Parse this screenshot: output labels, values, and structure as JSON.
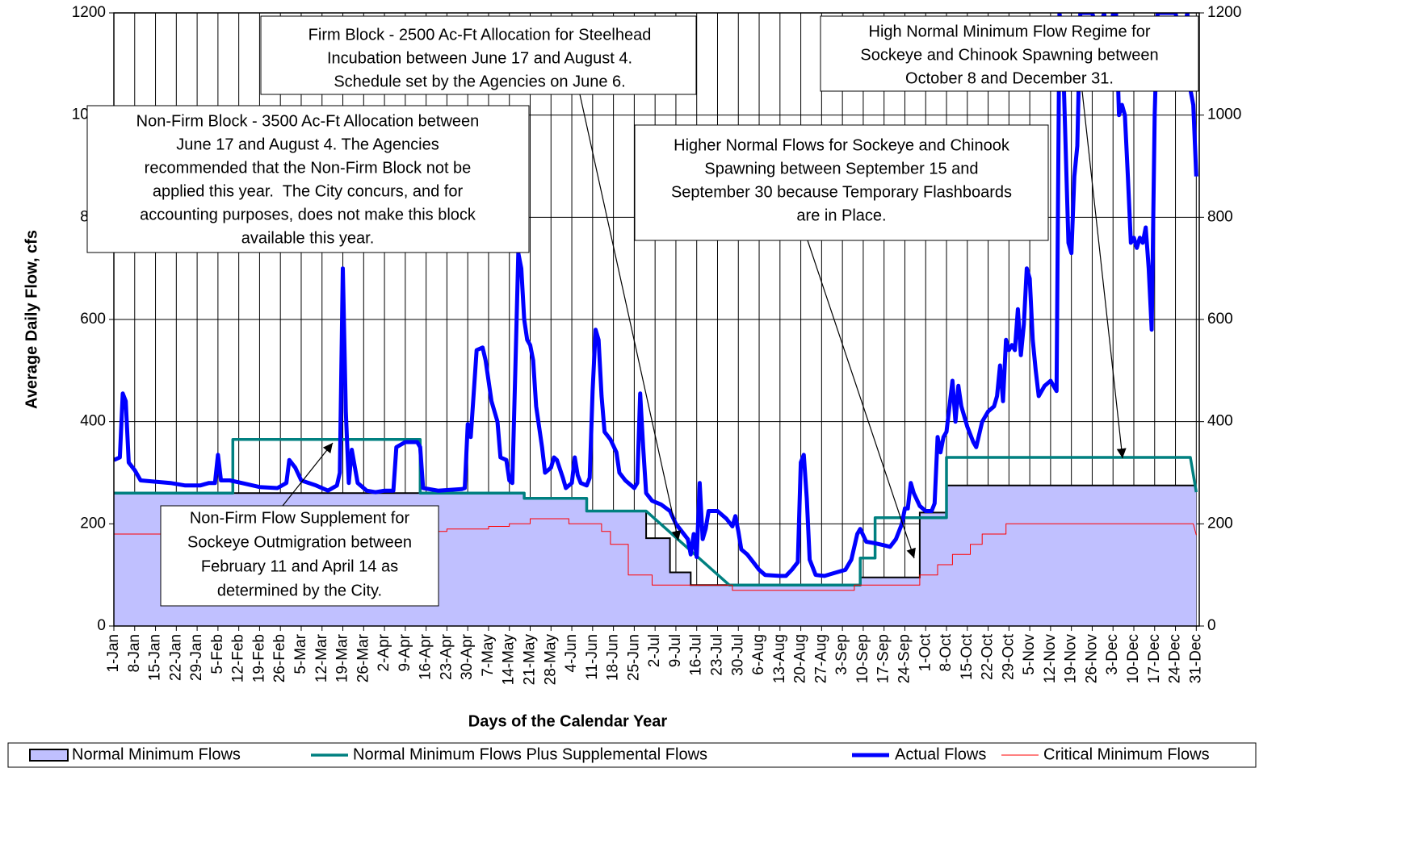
{
  "chart_data": {
    "type": "line",
    "y_label": "Average Daily Flow, cfs",
    "x_label": "Days of the Calendar Year",
    "xlim": [
      1,
      366
    ],
    "ylim": [
      0,
      1200
    ],
    "y2lim": [
      0,
      1200
    ],
    "yticks": [
      0,
      200,
      400,
      600,
      800,
      1000,
      1200
    ],
    "y2ticks": [
      0,
      200,
      400,
      600,
      800,
      1000,
      1200
    ],
    "grid": true,
    "legend": "bottom",
    "xticks": [
      {
        "value": 1,
        "label": "1-Jan"
      },
      {
        "value": 8,
        "label": "8-Jan"
      },
      {
        "value": 15,
        "label": "15-Jan"
      },
      {
        "value": 22,
        "label": "22-Jan"
      },
      {
        "value": 29,
        "label": "29-Jan"
      },
      {
        "value": 36,
        "label": "5-Feb"
      },
      {
        "value": 43,
        "label": "12-Feb"
      },
      {
        "value": 50,
        "label": "19-Feb"
      },
      {
        "value": 57,
        "label": "26-Feb"
      },
      {
        "value": 64,
        "label": "5-Mar"
      },
      {
        "value": 71,
        "label": "12-Mar"
      },
      {
        "value": 78,
        "label": "19-Mar"
      },
      {
        "value": 85,
        "label": "26-Mar"
      },
      {
        "value": 92,
        "label": "2-Apr"
      },
      {
        "value": 99,
        "label": "9-Apr"
      },
      {
        "value": 106,
        "label": "16-Apr"
      },
      {
        "value": 113,
        "label": "23-Apr"
      },
      {
        "value": 120,
        "label": "30-Apr"
      },
      {
        "value": 127,
        "label": "7-May"
      },
      {
        "value": 134,
        "label": "14-May"
      },
      {
        "value": 141,
        "label": "21-May"
      },
      {
        "value": 148,
        "label": "28-May"
      },
      {
        "value": 155,
        "label": "4-Jun"
      },
      {
        "value": 162,
        "label": "11-Jun"
      },
      {
        "value": 169,
        "label": "18-Jun"
      },
      {
        "value": 176,
        "label": "25-Jun"
      },
      {
        "value": 183,
        "label": "2-Jul"
      },
      {
        "value": 190,
        "label": "9-Jul"
      },
      {
        "value": 197,
        "label": "16-Jul"
      },
      {
        "value": 204,
        "label": "23-Jul"
      },
      {
        "value": 211,
        "label": "30-Jul"
      },
      {
        "value": 218,
        "label": "6-Aug"
      },
      {
        "value": 225,
        "label": "13-Aug"
      },
      {
        "value": 232,
        "label": "20-Aug"
      },
      {
        "value": 239,
        "label": "27-Aug"
      },
      {
        "value": 246,
        "label": "3-Sep"
      },
      {
        "value": 253,
        "label": "10-Sep"
      },
      {
        "value": 260,
        "label": "17-Sep"
      },
      {
        "value": 267,
        "label": "24-Sep"
      },
      {
        "value": 274,
        "label": "1-Oct"
      },
      {
        "value": 281,
        "label": "8-Oct"
      },
      {
        "value": 288,
        "label": "15-Oct"
      },
      {
        "value": 295,
        "label": "22-Oct"
      },
      {
        "value": 302,
        "label": "29-Oct"
      },
      {
        "value": 309,
        "label": "5-Nov"
      },
      {
        "value": 316,
        "label": "12-Nov"
      },
      {
        "value": 323,
        "label": "19-Nov"
      },
      {
        "value": 330,
        "label": "26-Nov"
      },
      {
        "value": 337,
        "label": "3-Dec"
      },
      {
        "value": 344,
        "label": "10-Dec"
      },
      {
        "value": 351,
        "label": "17-Dec"
      },
      {
        "value": 358,
        "label": "24-Dec"
      },
      {
        "value": 365,
        "label": "31-Dec"
      }
    ],
    "series": [
      {
        "name": "Normal Minimum Flows",
        "type": "area",
        "color": "#c0c0ff",
        "edge_color": "#000000",
        "x": [
          1,
          139,
          139,
          160,
          160,
          180,
          180,
          188,
          188,
          195,
          195,
          252,
          252,
          272,
          272,
          281,
          281,
          365
        ],
        "values": [
          260,
          260,
          250,
          250,
          225,
          225,
          172,
          172,
          105,
          105,
          80,
          80,
          95,
          95,
          222,
          222,
          275,
          275
        ]
      },
      {
        "name": "Normal Minimum Flows Plus Supplemental Flows",
        "type": "line",
        "color": "#008080",
        "width": 3.5,
        "x": [
          1,
          41,
          41,
          104,
          104,
          139,
          139,
          160,
          160,
          180,
          208,
          252,
          252,
          257,
          257,
          281,
          281,
          363,
          365
        ],
        "values": [
          260,
          260,
          365,
          365,
          260,
          260,
          250,
          250,
          225,
          225,
          80,
          80,
          133,
          133,
          212,
          212,
          330,
          330,
          262
        ]
      },
      {
        "name": "Actual Flows",
        "type": "line",
        "color": "#0000ff",
        "width": 5,
        "x": [
          1,
          3,
          4,
          5,
          6,
          8,
          10,
          20,
          25,
          30,
          33,
          35,
          36,
          37,
          40,
          44,
          50,
          56,
          59,
          60,
          62,
          64,
          69,
          73,
          76,
          77,
          78,
          79,
          80,
          81,
          83,
          86,
          89,
          92,
          95,
          96,
          99,
          103,
          104,
          105,
          110,
          118,
          119,
          120,
          121,
          123,
          125,
          126,
          128,
          130,
          131,
          133,
          134,
          135,
          136,
          137,
          138,
          139,
          140,
          141,
          142,
          143,
          145,
          146,
          148,
          149,
          150,
          152,
          153,
          155,
          156,
          157,
          158,
          160,
          161,
          162,
          163,
          164,
          165,
          166,
          168,
          170,
          171,
          173,
          175,
          176,
          177,
          178,
          179,
          180,
          182,
          185,
          188,
          190,
          192,
          194,
          195,
          196,
          197,
          198,
          199,
          200,
          201,
          204,
          207,
          209,
          210,
          211,
          212,
          214,
          216,
          218,
          220,
          225,
          227,
          229,
          231,
          232,
          233,
          234,
          235,
          237,
          240,
          244,
          247,
          249,
          251,
          252,
          254,
          257,
          260,
          262,
          264,
          266,
          267,
          268,
          269,
          270,
          272,
          274,
          276,
          277,
          278,
          279,
          280,
          281,
          283,
          284,
          285,
          286,
          288,
          290,
          291,
          293,
          295,
          297,
          298,
          299,
          300,
          301,
          302,
          303,
          304,
          305,
          306,
          307,
          308,
          309,
          310,
          311,
          312,
          314,
          316,
          318,
          319,
          320,
          322,
          323,
          324,
          325,
          326,
          330,
          332,
          334,
          336,
          337,
          338,
          339,
          340,
          341,
          342,
          343,
          344,
          345,
          346,
          347,
          348,
          349,
          350,
          351,
          352,
          356,
          358,
          360,
          362,
          363,
          364,
          365
        ],
        "values": [
          325,
          330,
          455,
          440,
          320,
          305,
          285,
          280,
          275,
          275,
          280,
          280,
          335,
          285,
          285,
          280,
          272,
          270,
          280,
          325,
          310,
          285,
          275,
          265,
          275,
          300,
          700,
          420,
          280,
          345,
          280,
          265,
          262,
          265,
          265,
          350,
          360,
          360,
          350,
          270,
          265,
          268,
          270,
          395,
          370,
          540,
          545,
          520,
          440,
          400,
          330,
          325,
          285,
          280,
          500,
          730,
          700,
          600,
          560,
          550,
          520,
          430,
          350,
          300,
          310,
          330,
          325,
          290,
          270,
          280,
          330,
          295,
          280,
          275,
          290,
          460,
          580,
          560,
          450,
          380,
          365,
          340,
          300,
          285,
          275,
          270,
          280,
          455,
          350,
          260,
          245,
          238,
          225,
          200,
          185,
          170,
          140,
          180,
          135,
          280,
          170,
          190,
          225,
          225,
          210,
          195,
          215,
          185,
          150,
          140,
          125,
          110,
          100,
          98,
          98,
          110,
          125,
          320,
          335,
          250,
          130,
          100,
          98,
          105,
          110,
          130,
          180,
          190,
          165,
          162,
          158,
          155,
          170,
          200,
          230,
          230,
          280,
          260,
          235,
          225,
          225,
          240,
          370,
          340,
          370,
          380,
          480,
          400,
          470,
          430,
          390,
          360,
          350,
          400,
          420,
          430,
          450,
          510,
          440,
          560,
          540,
          550,
          540,
          620,
          530,
          590,
          700,
          680,
          560,
          500,
          450,
          470,
          480,
          460,
          1200,
          1150,
          750,
          730,
          880,
          940,
          1200,
          1200,
          1160,
          1200,
          1100,
          1200,
          1200,
          1000,
          1020,
          1000,
          880,
          750,
          760,
          740,
          760,
          750,
          780,
          700,
          580,
          1000,
          1200,
          1200,
          1200,
          1150,
          1200,
          1050,
          1020,
          880
        ]
      },
      {
        "name": "Critical Minimum Flows",
        "type": "line",
        "color": "#ff0000",
        "width": 1,
        "x": [
          1,
          105,
          105,
          113,
          113,
          127,
          127,
          134,
          134,
          141,
          141,
          154,
          154,
          165,
          165,
          168,
          168,
          174,
          174,
          182,
          182,
          209,
          209,
          250,
          250,
          272,
          272,
          278,
          278,
          283,
          283,
          289,
          289,
          293,
          293,
          301,
          301,
          364,
          365
        ],
        "values": [
          180,
          180,
          185,
          185,
          190,
          190,
          195,
          195,
          200,
          200,
          210,
          210,
          200,
          200,
          185,
          185,
          160,
          160,
          100,
          100,
          80,
          80,
          70,
          70,
          80,
          80,
          100,
          100,
          120,
          120,
          140,
          140,
          160,
          160,
          180,
          180,
          200,
          200,
          178
        ]
      }
    ],
    "annotations": [
      {
        "lines": [
          "Firm Block - 2500 Ac-Ft Allocation for Steelhead",
          "Incubation between June 17 and August 4.",
          "Schedule set by the Agencies on June 6."
        ]
      },
      {
        "lines": [
          "High Normal Minimum Flow Regime for",
          "Sockeye and Chinook Spawning between",
          "October 8 and December 31."
        ]
      },
      {
        "lines": [
          "Non-Firm Block - 3500 Ac-Ft Allocation between",
          "June 17 and August 4. The Agencies",
          "recommended that the Non-Firm Block not be",
          "applied this year.  The City concurs, and for",
          "accounting purposes, does not make this block",
          "available this year."
        ]
      },
      {
        "lines": [
          "Higher Normal Flows for Sockeye and Chinook",
          "Spawning between September 15 and",
          "September 30 because Temporary Flashboards",
          "are in Place."
        ]
      },
      {
        "lines": [
          "Non-Firm Flow Supplement for",
          "Sockeye Outmigration between",
          "February 11 and April 14 as",
          "determined by the City."
        ]
      }
    ]
  }
}
